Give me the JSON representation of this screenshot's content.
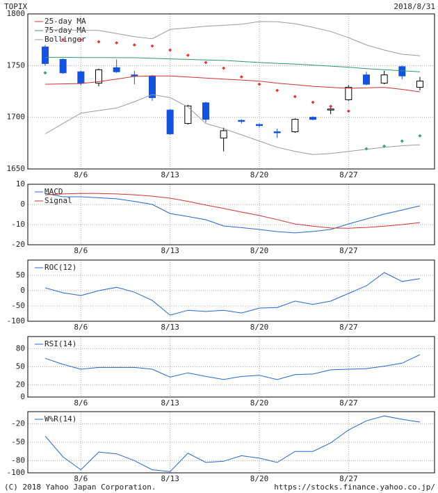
{
  "header": {
    "symbol": "TOPIX",
    "date": "2018/8/31"
  },
  "footer": {
    "copyright": "(C) 2018 Yahoo Japan Corporation.",
    "url": "https://stocks.finance.yahoo.co.jp/"
  },
  "chart_data": [
    {
      "type": "candlestick",
      "categories": [
        null,
        null,
        "8/6",
        null,
        null,
        null,
        null,
        "8/13",
        null,
        null,
        null,
        null,
        "8/20",
        null,
        null,
        null,
        null,
        "8/27",
        null,
        null,
        null,
        null
      ],
      "open": [
        1768,
        1756,
        1744,
        1733,
        1748,
        1741,
        1740,
        1707,
        1694,
        1714,
        1680,
        1697,
        1693,
        1686,
        1686,
        1700,
        1707,
        1717,
        1741,
        1733,
        1749,
        1729
      ],
      "high": [
        1770,
        1757,
        1745,
        1747,
        1756,
        1745,
        1741,
        1708,
        1712,
        1715,
        1690,
        1698,
        1694,
        1689,
        1699,
        1701,
        1709,
        1731,
        1744,
        1745,
        1750,
        1739
      ],
      "low": [
        1750,
        1742,
        1731,
        1730,
        1743,
        1732,
        1716,
        1683,
        1693,
        1695,
        1667,
        1694,
        1690,
        1680,
        1685,
        1697,
        1703,
        1716,
        1731,
        1732,
        1737,
        1726
      ],
      "close": [
        1752,
        1743,
        1733,
        1746,
        1744,
        1740,
        1719,
        1684,
        1711,
        1698,
        1687,
        1696,
        1692,
        1685,
        1698,
        1698,
        1708,
        1729,
        1732,
        1741,
        1740,
        1735
      ],
      "up_color": "#ffffff",
      "down_color": "#1452e0",
      "series": [
        {
          "name": "25-day MA",
          "color": "#d03030",
          "style": "line",
          "values": [
            1732,
            1732.3,
            1732.7,
            1734.5,
            1737,
            1739.5,
            1740,
            1740,
            1739,
            1738,
            1737,
            1736,
            1735,
            1733,
            1731.5,
            1730,
            1729,
            1728,
            1728.5,
            1729,
            1727,
            1724.6
          ]
        },
        {
          "name": "75-day MA",
          "color": "#2a9a6a",
          "style": "line",
          "values": [
            1758,
            1758,
            1757.8,
            1757.8,
            1757.7,
            1757.6,
            1757,
            1756.5,
            1756,
            1755.5,
            1755,
            1754,
            1753,
            1752.2,
            1751.5,
            1750.5,
            1749.5,
            1748.5,
            1747,
            1746,
            1745,
            1744
          ]
        },
        {
          "name": "Bollinger",
          "color": "#9a9a9a",
          "style": "line",
          "values": [
            1784.5,
            1784.5,
            1784.2,
            1784,
            1781,
            1778,
            1776,
            1785,
            1786.5,
            1788,
            1789,
            1790,
            1792.6,
            1792.5,
            1790.5,
            1787,
            1783,
            1777,
            1770,
            1765,
            1761,
            1759.6
          ]
        },
        {
          "color": "#9a9a9a",
          "style": "line",
          "values": [
            1684,
            1694,
            1704,
            1706.5,
            1709,
            1715,
            1722,
            1719,
            1710,
            1694,
            1689,
            1683,
            1677,
            1671,
            1667,
            1664,
            1665,
            1667,
            1669,
            1671,
            1672.5,
            1673.5
          ]
        },
        {
          "color": "#e03a3a",
          "style": "dots",
          "values": [
            null,
            1775,
            1775,
            1773,
            1772,
            1770,
            1769,
            1765,
            1760,
            1753,
            1747.5,
            1739,
            1732,
            1726,
            1720,
            1714.5,
            1710.5,
            1706,
            null,
            null,
            null,
            null
          ]
        },
        {
          "color": "#2aa870",
          "style": "dots",
          "values": [
            1743,
            null,
            null,
            null,
            null,
            null,
            null,
            null,
            null,
            null,
            null,
            null,
            null,
            null,
            null,
            null,
            null,
            null,
            1669.5,
            1672,
            1677,
            1682
          ]
        }
      ],
      "ylim": [
        1650,
        1800
      ],
      "yticks": [
        1650,
        1700,
        1750,
        1800
      ],
      "grid": true
    },
    {
      "type": "line",
      "categories": [
        null,
        null,
        "8/6",
        null,
        null,
        null,
        null,
        "8/13",
        null,
        null,
        null,
        null,
        "8/20",
        null,
        null,
        null,
        null,
        "8/27",
        null,
        null,
        null,
        null
      ],
      "series": [
        {
          "name": "MACD",
          "color": "#2266cc",
          "values": [
            5.5,
            3.8,
            3.8,
            3.3,
            2.8,
            1.5,
            0,
            -4.5,
            -6,
            -7.6,
            -10.7,
            -11.5,
            -12.4,
            -13.5,
            -14.1,
            -13.4,
            -12.4,
            -9.7,
            -7.2,
            -4.8,
            -2.8,
            -0.7
          ]
        },
        {
          "name": "Signal",
          "color": "#d03030",
          "values": [
            4.8,
            5.2,
            5.5,
            5.4,
            5.2,
            4.8,
            4.1,
            3.1,
            1.5,
            -0.3,
            -2,
            -3.8,
            -5.5,
            -7.5,
            -9.7,
            -10.8,
            -11.7,
            -11.8,
            -11.4,
            -10.8,
            -10,
            -9
          ]
        }
      ],
      "ylim": [
        -20,
        10
      ],
      "yticks": [
        -20,
        -10,
        0,
        10
      ],
      "grid": true
    },
    {
      "type": "line",
      "categories": [
        null,
        null,
        "8/6",
        null,
        null,
        null,
        null,
        "8/13",
        null,
        null,
        null,
        null,
        "8/20",
        null,
        null,
        null,
        null,
        "8/27",
        null,
        null,
        null,
        null
      ],
      "series": [
        {
          "name": "ROC(12)",
          "color": "#2266cc",
          "values": [
            9,
            -7,
            -16,
            0,
            11,
            -5,
            -32,
            -80,
            -64,
            -68,
            -64,
            -73,
            -57,
            -55,
            -34,
            -45,
            -34,
            -9,
            16,
            59,
            30,
            39
          ]
        }
      ],
      "ylim": [
        -100,
        100
      ],
      "yticks": [
        -100,
        -50,
        0,
        50
      ],
      "grid": true
    },
    {
      "type": "line",
      "categories": [
        null,
        null,
        "8/6",
        null,
        null,
        null,
        null,
        "8/13",
        null,
        null,
        null,
        null,
        "8/20",
        null,
        null,
        null,
        null,
        "8/27",
        null,
        null,
        null,
        null
      ],
      "series": [
        {
          "name": "RSI(14)",
          "color": "#2266cc",
          "values": [
            64,
            54,
            46,
            49,
            49,
            49,
            46,
            33,
            40,
            34,
            29,
            34,
            36,
            29,
            37,
            38,
            45,
            46,
            47,
            51,
            56,
            70
          ]
        }
      ],
      "ylim": [
        0,
        100
      ],
      "yticks": [
        0,
        20,
        50,
        80
      ],
      "grid": true
    },
    {
      "type": "line",
      "categories": [
        null,
        null,
        "8/6",
        null,
        null,
        null,
        null,
        "8/13",
        null,
        null,
        null,
        null,
        "8/20",
        null,
        null,
        null,
        null,
        "8/27",
        null,
        null,
        null,
        null
      ],
      "series": [
        {
          "name": "W%R(14)",
          "color": "#2266cc",
          "values": [
            -40,
            -74,
            -95,
            -66,
            -69,
            -80,
            -95,
            -98,
            -68,
            -83,
            -81,
            -72,
            -76,
            -83,
            -65,
            -65,
            -51,
            -30,
            -15,
            -7,
            -12.5,
            -17
          ]
        }
      ],
      "ylim": [
        -100,
        0
      ],
      "yticks": [
        -100,
        -80,
        -50,
        -20
      ],
      "grid": true
    }
  ]
}
